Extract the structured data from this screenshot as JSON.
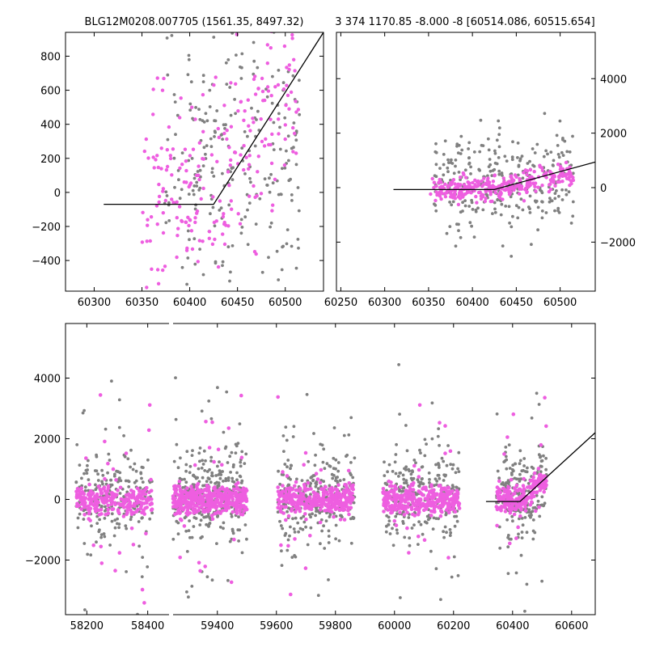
{
  "chart_data": [
    {
      "id": "top-left",
      "type": "scatter",
      "title": "BLG12M0208.007705 (1561.35, 8497.32)",
      "xlim": [
        60270,
        60540
      ],
      "ylim": [
        -580,
        940
      ],
      "xticks": [
        60300,
        60350,
        60400,
        60450,
        60500
      ],
      "xtick_labels": [
        "60300",
        "60350",
        "60400",
        "60450",
        "60500"
      ],
      "yticks": [
        -400,
        -200,
        0,
        200,
        400,
        600,
        800
      ],
      "ytick_labels": [
        "−400",
        "−200",
        "0",
        "200",
        "400",
        "600",
        "800"
      ],
      "ytick_side": "left",
      "model_line": {
        "x": [
          60310,
          60425,
          60540
        ],
        "y": [
          -70,
          -70,
          940
        ]
      },
      "series": [
        {
          "color": "#808080",
          "n": 260,
          "seed": 11,
          "x_range": [
            60370,
            60515
          ],
          "y_center": 200,
          "y_spread": 520
        },
        {
          "color": "#ee5ee0",
          "n": 230,
          "seed": 29,
          "x_range": [
            60350,
            60515
          ],
          "y_center": 50,
          "y_spread": 280,
          "slope_after": 60425,
          "slope": 6.5
        }
      ]
    },
    {
      "id": "top-right",
      "type": "scatter",
      "title": "3 374 1170.85 -8.000 -8 [60514.086, 60515.654]",
      "xlim": [
        60245,
        60540
      ],
      "ylim": [
        -3800,
        5700
      ],
      "xticks": [
        60250,
        60300,
        60350,
        60400,
        60450,
        60500
      ],
      "xtick_labels": [
        "60250",
        "60300",
        "60350",
        "60400",
        "60450",
        "60500"
      ],
      "yticks": [
        -2000,
        0,
        2000,
        4000
      ],
      "ytick_labels": [
        "−2000",
        "0",
        "2000",
        "4000"
      ],
      "ytick_side": "right",
      "model_line": {
        "x": [
          60310,
          60425,
          60540
        ],
        "y": [
          -70,
          -70,
          940
        ]
      },
      "series": [
        {
          "color": "#808080",
          "n": 300,
          "seed": 41,
          "x_range": [
            60355,
            60515
          ],
          "y_center": 200,
          "y_spread": 900
        },
        {
          "color": "#ee5ee0",
          "n": 320,
          "seed": 53,
          "x_range": [
            60350,
            60515
          ],
          "y_center": -50,
          "y_spread": 220,
          "slope_after": 60425,
          "slope": 6.5
        }
      ]
    },
    {
      "id": "bottom",
      "type": "scatter",
      "title": "",
      "xlim": [
        58130,
        60680
      ],
      "ylim": [
        -3800,
        5800
      ],
      "xticks": [
        58200,
        58400,
        59400,
        59600,
        59800,
        60000,
        60200,
        60400,
        60600
      ],
      "xtick_labels": [
        "58200",
        "58400",
        "59400",
        "59600",
        "59800",
        "60000",
        "60200",
        "60400",
        "60600"
      ],
      "yticks": [
        -2000,
        0,
        2000,
        4000
      ],
      "ytick_labels": [
        "−2000",
        "0",
        "2000",
        "4000"
      ],
      "ytick_side": "left",
      "axis_break": [
        58470,
        59250
      ],
      "model_line": {
        "x": [
          60310,
          60425,
          60680
        ],
        "y": [
          -70,
          -70,
          2200
        ]
      },
      "segments": [
        {
          "x_range": [
            58165,
            58415
          ],
          "n_grey": 220,
          "n_pink": 260,
          "seed": 101
        },
        {
          "x_range": [
            59250,
            59500
          ],
          "n_grey": 330,
          "n_pink": 420,
          "seed": 131
        },
        {
          "x_range": [
            59605,
            59865
          ],
          "n_grey": 260,
          "n_pink": 330,
          "seed": 151
        },
        {
          "x_range": [
            59960,
            60220
          ],
          "n_grey": 260,
          "n_pink": 330,
          "seed": 171
        },
        {
          "x_range": [
            60345,
            60515
          ],
          "n_grey": 200,
          "n_pink": 220,
          "seed": 191,
          "rising": true
        }
      ],
      "colors": {
        "grey": "#808080",
        "pink": "#ee5ee0"
      }
    }
  ]
}
